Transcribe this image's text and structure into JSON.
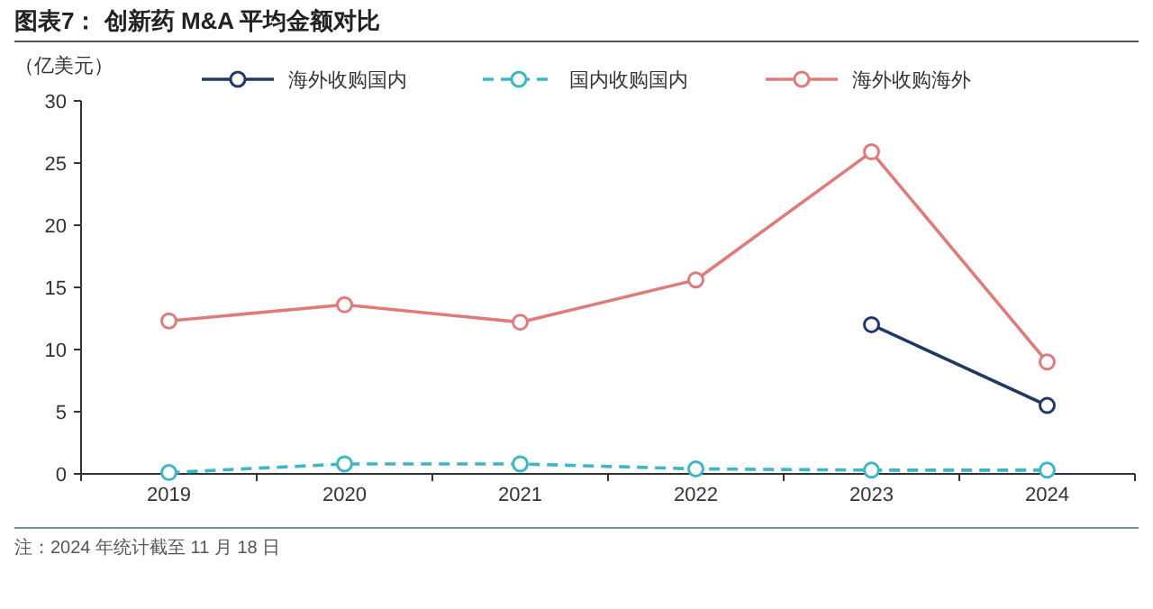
{
  "chart_data": {
    "type": "line",
    "title": "图表7： 创新药 M&A 平均金额对比",
    "ylabel": "（亿美元）",
    "annotations": [
      "注：2024 年统计截至 11 月 18 日"
    ],
    "categories": [
      "2019",
      "2020",
      "2021",
      "2022",
      "2023",
      "2024"
    ],
    "ylim": [
      0,
      30
    ],
    "yticks": [
      0,
      5,
      10,
      15,
      20,
      25,
      30
    ],
    "grid": false,
    "legend": "top",
    "marker": "circle",
    "series": [
      {
        "name": "海外收购国内",
        "color": "#1f3864",
        "line_style": "solid",
        "values": [
          null,
          null,
          null,
          null,
          12.0,
          5.5
        ]
      },
      {
        "name": "国内收购国内",
        "color": "#3fb6c6",
        "line_style": "dashed",
        "values": [
          0.1,
          0.8,
          0.8,
          0.4,
          0.3,
          0.3
        ]
      },
      {
        "name": "海外收购海外",
        "color": "#e07b7b",
        "line_style": "solid",
        "values": [
          12.3,
          13.6,
          12.2,
          15.6,
          25.9,
          9.0
        ]
      }
    ]
  }
}
